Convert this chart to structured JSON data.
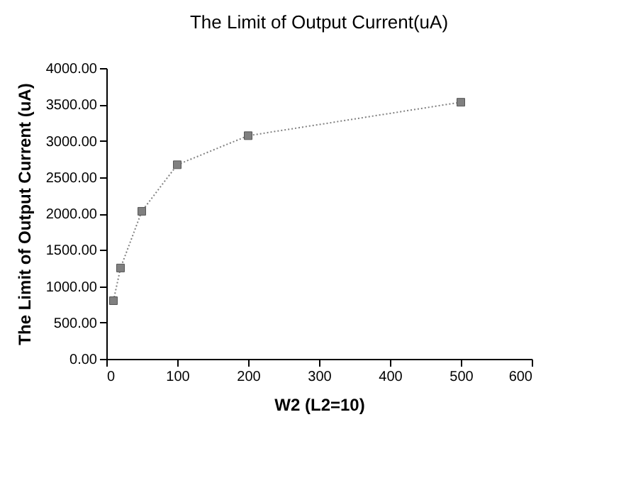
{
  "chart_data": {
    "type": "line",
    "title": "The Limit of Output Current(uA)",
    "xlabel": "W2 (L2=10)",
    "ylabel": "The Limit of Output Current (uA)",
    "x": [
      10,
      20,
      50,
      100,
      200,
      500
    ],
    "series": [
      {
        "color": "#808080",
        "values": [
          800,
          1250,
          2030,
          2670,
          3070,
          3530
        ]
      }
    ],
    "xlim": [
      0,
      600
    ],
    "xticks": [
      0,
      100,
      200,
      300,
      400,
      500,
      600
    ],
    "ylim": [
      0,
      4000
    ],
    "yticks": [
      {
        "value": 0,
        "label": "0.00"
      },
      {
        "value": 500,
        "label": "500.00"
      },
      {
        "value": 1000,
        "label": "1000.00"
      },
      {
        "value": 1500,
        "label": "1500.00"
      },
      {
        "value": 2000,
        "label": "2000.00"
      },
      {
        "value": 2500,
        "label": "2500.00"
      },
      {
        "value": 3000,
        "label": "3000.00"
      },
      {
        "value": 3500,
        "label": "3500.00"
      },
      {
        "value": 4000,
        "label": "4000.00"
      }
    ],
    "marker": "square",
    "line_style": "dotted"
  }
}
